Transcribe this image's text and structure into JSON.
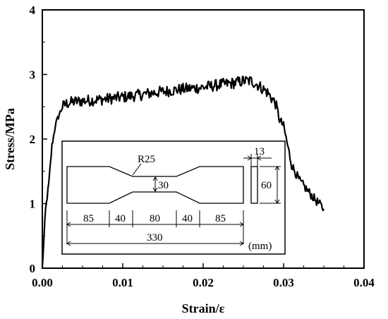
{
  "chart_data": {
    "type": "line",
    "xlabel": "Strain/ε",
    "ylabel": "Stress/MPa",
    "xlim": [
      0,
      0.04
    ],
    "ylim": [
      0,
      4
    ],
    "x_ticks": [
      "0.00",
      "0.01",
      "0.02",
      "0.03",
      "0.04"
    ],
    "y_ticks": [
      "0",
      "1",
      "2",
      "3",
      "4"
    ],
    "grid": false,
    "legend": "none",
    "series": [
      {
        "color": "#000000",
        "x": [
          0.0,
          0.0004,
          0.0008,
          0.0012,
          0.0016,
          0.002,
          0.0025,
          0.003,
          0.004,
          0.006,
          0.008,
          0.01,
          0.012,
          0.014,
          0.016,
          0.018,
          0.02,
          0.022,
          0.024,
          0.025,
          0.026,
          0.027,
          0.028,
          0.029,
          0.0295,
          0.03,
          0.0305,
          0.031,
          0.032,
          0.033,
          0.034,
          0.035
        ],
        "y": [
          0.0,
          0.9,
          1.3,
          1.9,
          2.2,
          2.35,
          2.5,
          2.55,
          2.58,
          2.6,
          2.62,
          2.65,
          2.68,
          2.72,
          2.75,
          2.78,
          2.8,
          2.84,
          2.87,
          2.9,
          2.9,
          2.82,
          2.72,
          2.55,
          2.3,
          2.2,
          1.9,
          1.6,
          1.35,
          1.2,
          1.05,
          0.92
        ]
      }
    ]
  },
  "inset": {
    "labels": {
      "radius": "R25",
      "width": "30",
      "thickness": "13",
      "height": "60",
      "grip_left": "85",
      "taper_left": "40",
      "gauge": "80",
      "taper_right": "40",
      "grip_right": "85",
      "total": "330",
      "unit": "(mm)"
    }
  }
}
